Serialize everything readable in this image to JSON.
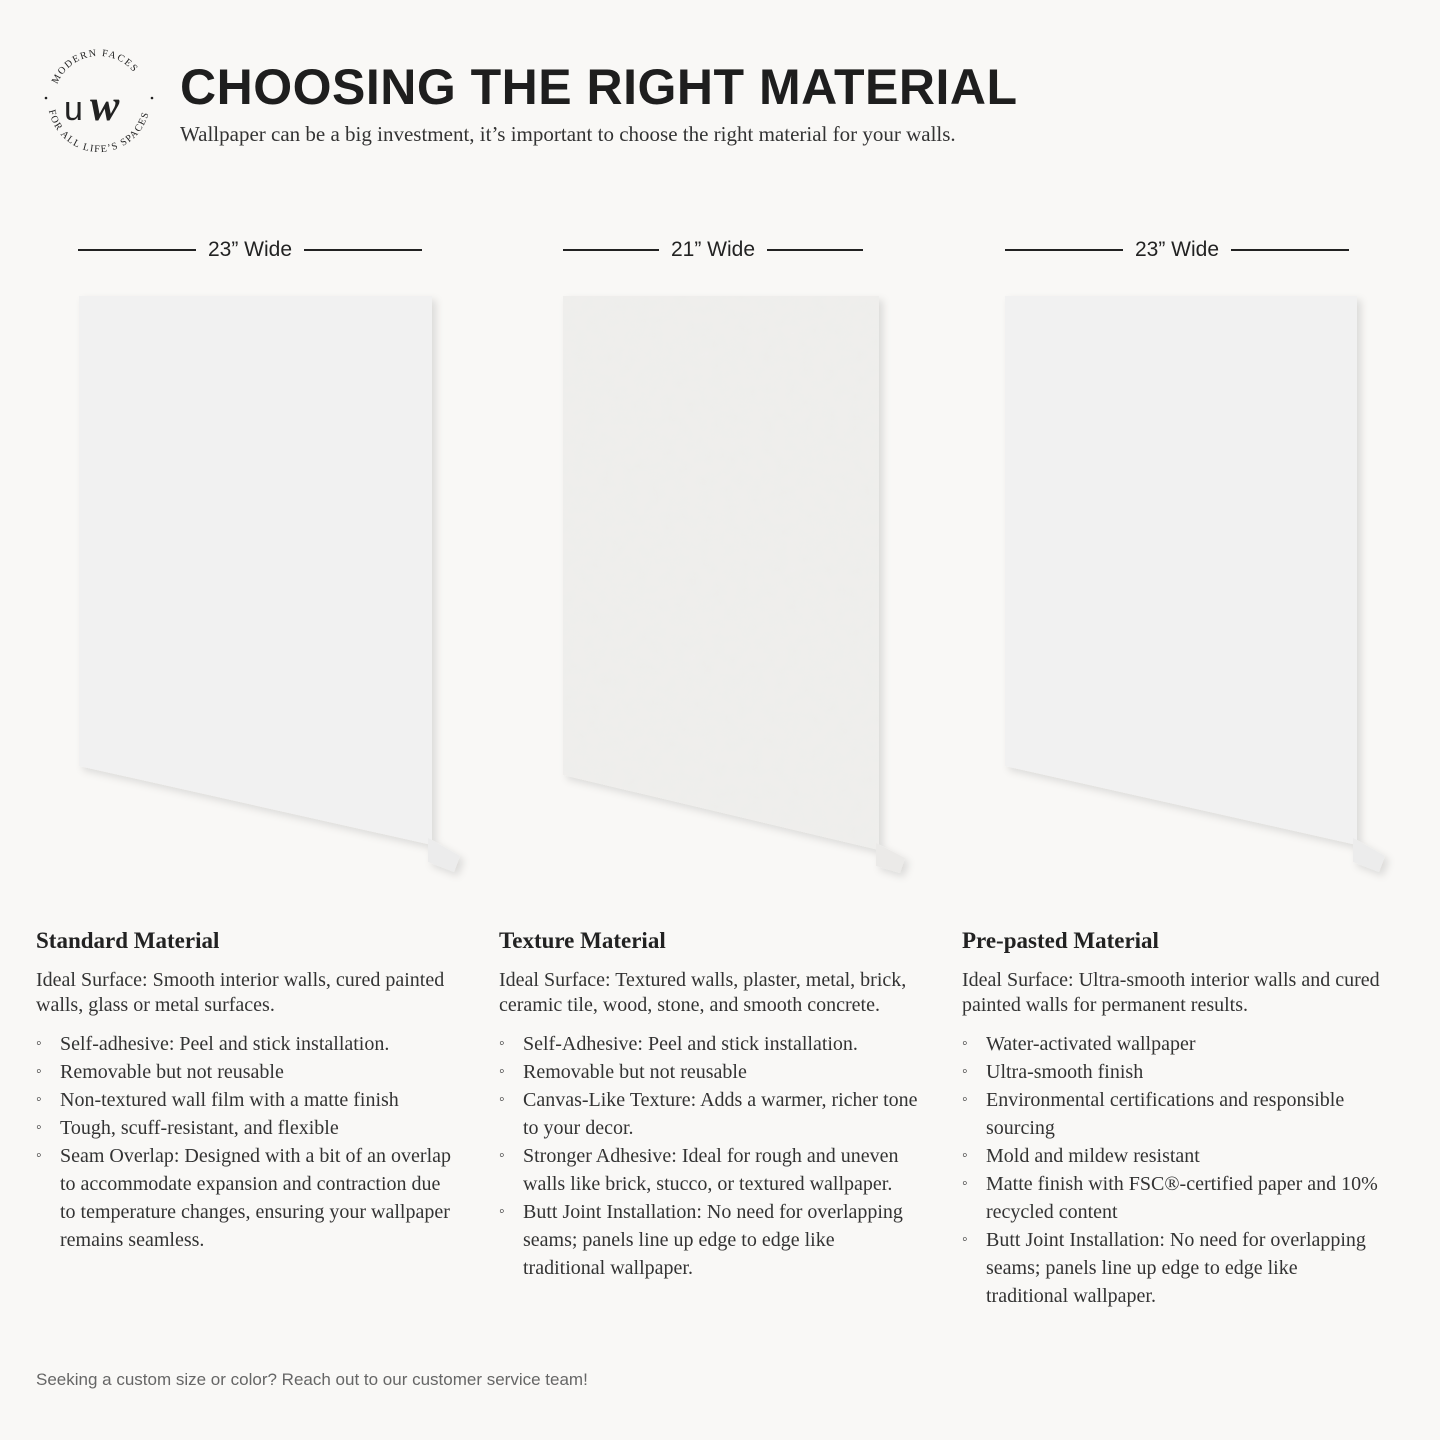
{
  "logo": {
    "monogram": "uw",
    "ring_text_top": "MODERN FACES",
    "ring_text_bottom": "FOR ALL LIFE'S SPACES"
  },
  "header": {
    "title": "CHOOSING THE RIGHT MATERIAL",
    "subtitle": "Wallpaper can be a big investment, it’s important to choose the right material for your walls."
  },
  "materials": [
    {
      "width": "23” Wide",
      "name": "Standard Material",
      "ideal": "Ideal Surface: Smooth interior walls, cured painted walls, glass or metal surfaces.",
      "features": [
        "Self-adhesive: Peel and stick installation.",
        "Removable but not reusable",
        "Non-textured wall film with a matte finish",
        "Tough, scuff-resistant, and flexible",
        "Seam Overlap: Designed with a bit of an overlap to accommodate expansion and contraction due to temperature changes, ensuring your wallpaper remains seamless."
      ]
    },
    {
      "width": "21” Wide",
      "name": "Texture Material",
      "ideal": "Ideal Surface: Textured walls, plaster, metal, brick, ceramic tile, wood, stone, and smooth concrete.",
      "features": [
        "Self-Adhesive: Peel and stick installation.",
        "Removable but not reusable",
        "Canvas-Like Texture: Adds a warmer, richer tone to your decor.",
        "Stronger Adhesive: Ideal for rough and uneven walls like brick, stucco, or textured wallpaper.",
        "Butt Joint Installation: No need for overlapping seams; panels line up edge to edge like traditional wallpaper."
      ]
    },
    {
      "width": "23” Wide",
      "name": "Pre-pasted Material",
      "ideal": "Ideal Surface: Ultra-smooth interior walls and cured painted walls for permanent results.",
      "features": [
        "Water-activated wallpaper",
        "Ultra-smooth finish",
        "Environmental certifications and responsible sourcing",
        "Mold and mildew resistant",
        "Matte finish with FSC®-certified paper and 10% recycled content",
        "Butt Joint Installation: No need for overlapping seams; panels line up edge to edge like traditional wallpaper."
      ]
    }
  ],
  "footer": "Seeking a custom size or color? Reach out to our customer service team!"
}
